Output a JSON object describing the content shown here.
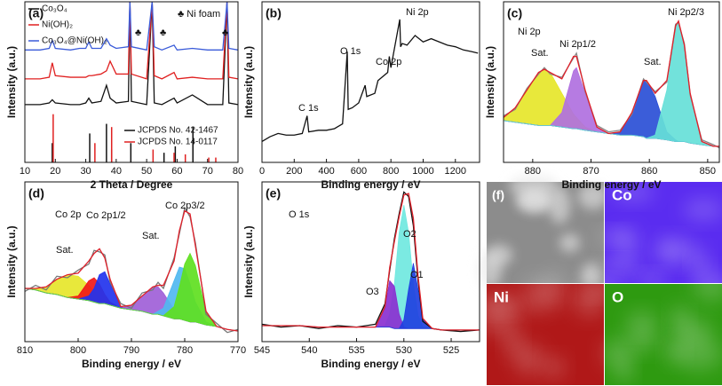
{
  "chart_data": [
    {
      "type": "line",
      "panel_label": "(a)",
      "xlabel": "2 Theta / Degree",
      "ylabel": "Intensity (a.u.)",
      "legend": "upper left",
      "xlim": [
        10,
        80
      ],
      "xticks": [
        10,
        20,
        30,
        40,
        50,
        60,
        70,
        80
      ],
      "ylim": [
        0,
        10
      ],
      "annotations": [
        "♣",
        "♣",
        "♣",
        "♣ Ni foam"
      ],
      "x": [
        10,
        15,
        18,
        19,
        20,
        25,
        28,
        30,
        31,
        32,
        35,
        36.8,
        38,
        40,
        44,
        44.5,
        45,
        50,
        51.8,
        52.5,
        55,
        59,
        60,
        65,
        70,
        75,
        76.4,
        77,
        80
      ],
      "series": [
        {
          "name": "Co₃O₄",
          "color": "#111111",
          "style": "line",
          "values": [
            3.6,
            3.6,
            3.7,
            3.9,
            3.7,
            3.6,
            3.6,
            3.7,
            4.0,
            3.7,
            3.8,
            4.8,
            4.0,
            3.7,
            3.8,
            10,
            3.8,
            3.6,
            10,
            3.7,
            3.6,
            4.0,
            3.7,
            4.2,
            3.6,
            3.6,
            10,
            3.7,
            3.6
          ]
        },
        {
          "name": "Ni(OH)₂",
          "color": "#e02020",
          "style": "line",
          "values": [
            5.2,
            5.2,
            5.3,
            6.2,
            5.4,
            5.3,
            5.3,
            5.3,
            5.4,
            5.4,
            5.5,
            5.7,
            6.3,
            5.5,
            5.5,
            10,
            5.5,
            5.2,
            10,
            5.4,
            5.2,
            5.6,
            5.2,
            5.3,
            5.2,
            5.2,
            10,
            5.3,
            5.2
          ]
        },
        {
          "name": "Co₃O₄@Ni(OH)₂",
          "color": "#3a5bd9",
          "style": "line",
          "values": [
            7.0,
            7.0,
            7.1,
            7.6,
            7.1,
            7.0,
            7.1,
            7.1,
            7.5,
            7.1,
            7.1,
            7.7,
            7.3,
            7.1,
            7.2,
            10,
            7.2,
            7.0,
            10,
            7.2,
            7.0,
            7.3,
            7.0,
            7.1,
            7.0,
            7.0,
            10,
            7.1,
            7.0
          ]
        },
        {
          "name": "JCPDS No. 42-1467",
          "color": "#111111",
          "style": "sticks",
          "x": [
            19,
            31.3,
            36.8,
            38.5,
            44.8,
            55.7,
            59.4,
            65.2
          ],
          "values": [
            1.2,
            1.8,
            2.4,
            0.8,
            1.2,
            0.6,
            1.0,
            2.2
          ]
        },
        {
          "name": "JCPDS No. 14-0117",
          "color": "#e02020",
          "style": "sticks",
          "x": [
            19.3,
            33,
            38.5,
            52.1,
            59,
            62.7,
            70.4,
            72.7
          ],
          "values": [
            3.0,
            1.2,
            2.2,
            0.8,
            0.6,
            0.5,
            0.3,
            0.3
          ]
        }
      ]
    },
    {
      "type": "line",
      "panel_label": "(b)",
      "xlabel": "Binding energy / eV",
      "ylabel": "Intensity (a.u.)",
      "xlim": [
        0,
        1350
      ],
      "xticks": [
        0,
        200,
        400,
        600,
        800,
        1000,
        1200
      ],
      "ylim": [
        0,
        10
      ],
      "annotations": [
        "Ni 2p",
        "O 1s",
        "Co 2p",
        "C 1s"
      ],
      "x": [
        0,
        50,
        100,
        150,
        200,
        250,
        280,
        290,
        350,
        400,
        450,
        500,
        529,
        535,
        560,
        600,
        640,
        650,
        700,
        720,
        780,
        790,
        800,
        855,
        860,
        870,
        900,
        950,
        1000,
        1050,
        1100,
        1150,
        1200,
        1250,
        1300,
        1340
      ],
      "series": [
        {
          "color": "#111111",
          "style": "line",
          "values": [
            1.3,
            1.6,
            1.8,
            1.7,
            1.7,
            1.8,
            2.9,
            1.9,
            2.0,
            2.0,
            2.1,
            2.4,
            6.9,
            3.3,
            3.4,
            3.7,
            4.8,
            4.1,
            4.3,
            5.1,
            5.6,
            6.6,
            5.9,
            8.9,
            7.2,
            7.4,
            7.3,
            7.9,
            7.5,
            7.7,
            7.5,
            7.3,
            7.2,
            7.0,
            6.9,
            6.8
          ]
        }
      ]
    },
    {
      "type": "line",
      "panel_label": "(c)",
      "xlabel": "Binding energy / eV",
      "ylabel": "Intensity (a.u.)",
      "xlim": [
        885,
        848
      ],
      "xticks": [
        880,
        870,
        860,
        850
      ],
      "ylim": [
        0,
        10
      ],
      "annotations": [
        "Ni 2p",
        "Sat.",
        "Ni 2p1/2",
        "Sat.",
        "Ni 2p2/3"
      ],
      "x": [
        885,
        883,
        881,
        879,
        878,
        877,
        875,
        873,
        872.5,
        871,
        869,
        867,
        865,
        863,
        861,
        860.5,
        859,
        857,
        855.5,
        855,
        854,
        853,
        851,
        849,
        848
      ],
      "series": [
        {
          "color": "#8aa0c0",
          "style": "baseline",
          "values": [
            2.6,
            2.5,
            2.4,
            2.3,
            2.3,
            2.3,
            2.2,
            2.1,
            2.1,
            2.0,
            1.9,
            1.8,
            1.7,
            1.7,
            1.6,
            1.5,
            1.5,
            1.4,
            1.3,
            1.3,
            1.3,
            1.2,
            1.1,
            1.0,
            1.0
          ]
        },
        {
          "color": "#e6e62a",
          "style": "area",
          "values": [
            2.8,
            3.4,
            4.5,
            5.6,
            5.8,
            5.6,
            4.3,
            3.0,
            2.8,
            2.2,
            1.9,
            1.8,
            1.7,
            1.7,
            1.6,
            1.5,
            1.5,
            1.4,
            1.3,
            1.3,
            1.3,
            1.2,
            1.1,
            1.0,
            1.0
          ]
        },
        {
          "color": "#b070e0",
          "style": "area",
          "values": [
            2.6,
            2.5,
            2.4,
            2.3,
            2.3,
            2.3,
            3.1,
            5.7,
            5.9,
            4.3,
            2.2,
            1.8,
            1.7,
            1.7,
            1.6,
            1.5,
            1.5,
            1.4,
            1.3,
            1.3,
            1.3,
            1.2,
            1.1,
            1.0,
            1.0
          ]
        },
        {
          "color": "#2a4fd6",
          "style": "area",
          "values": [
            2.6,
            2.5,
            2.4,
            2.3,
            2.3,
            2.3,
            2.2,
            2.1,
            2.1,
            2.0,
            1.9,
            1.8,
            1.9,
            3.1,
            5.1,
            5.1,
            4.1,
            1.9,
            1.4,
            1.3,
            1.3,
            1.2,
            1.1,
            1.0,
            1.0
          ]
        },
        {
          "color": "#66e0d8",
          "style": "area",
          "values": [
            2.6,
            2.5,
            2.4,
            2.3,
            2.3,
            2.3,
            2.2,
            2.1,
            2.1,
            2.0,
            1.9,
            1.8,
            1.7,
            1.7,
            1.6,
            1.5,
            1.7,
            4.5,
            8.4,
            8.8,
            7.3,
            4.3,
            1.3,
            1.0,
            1.0
          ]
        },
        {
          "color": "#888888",
          "style": "line",
          "values": [
            2.9,
            3.3,
            4.6,
            5.5,
            5.9,
            5.5,
            5.3,
            6.5,
            6.8,
            4.4,
            2.3,
            1.9,
            2.0,
            3.0,
            5.2,
            5.0,
            4.4,
            5.0,
            8.6,
            8.7,
            7.4,
            4.2,
            1.4,
            1.1,
            0.9
          ]
        },
        {
          "color": "#e0202a",
          "style": "line",
          "values": [
            2.8,
            3.4,
            4.5,
            5.6,
            5.8,
            5.6,
            5.2,
            6.6,
            6.6,
            4.5,
            2.2,
            1.8,
            1.9,
            3.1,
            5.1,
            5.1,
            4.3,
            5.1,
            8.5,
            8.8,
            7.3,
            4.3,
            1.3,
            1.0,
            1.0
          ]
        }
      ]
    },
    {
      "type": "line",
      "panel_label": "(d)",
      "xlabel": "Binding energy / eV",
      "ylabel": "Intensity (a.u.)",
      "xlim": [
        810,
        770
      ],
      "xticks": [
        810,
        800,
        790,
        780,
        770
      ],
      "ylim": [
        0,
        10.5
      ],
      "annotations": [
        "Co 2p",
        "Sat.",
        "Co 2p1/2",
        "Sat.",
        "Co 2p3/2"
      ],
      "x": [
        810,
        808,
        806,
        804,
        802,
        800,
        798,
        797,
        796,
        795,
        794,
        792,
        790,
        788,
        786,
        785,
        784,
        782,
        781,
        780,
        779,
        778,
        776,
        774,
        772,
        770
      ],
      "series": [
        {
          "color": "#8aa0c0",
          "style": "baseline",
          "values": [
            3.5,
            3.4,
            3.2,
            3.1,
            2.9,
            2.8,
            2.7,
            2.6,
            2.5,
            2.5,
            2.4,
            2.2,
            2.1,
            2.0,
            1.8,
            1.8,
            1.7,
            1.5,
            1.5,
            1.4,
            1.3,
            1.3,
            1.1,
            1.0,
            0.8,
            0.7
          ]
        },
        {
          "color": "#e6e62a",
          "style": "area",
          "values": [
            3.5,
            3.5,
            3.6,
            4.1,
            4.4,
            4.3,
            3.7,
            3.3,
            2.9,
            2.7,
            2.5,
            2.2,
            2.1,
            2.0,
            1.8,
            1.8,
            1.7,
            1.5,
            1.5,
            1.4,
            1.3,
            1.3,
            1.1,
            1.0,
            0.8,
            0.7
          ]
        },
        {
          "color": "#f01818",
          "style": "area",
          "values": [
            3.5,
            3.4,
            3.2,
            3.1,
            2.9,
            3.0,
            4.0,
            4.2,
            3.8,
            3.1,
            2.6,
            2.2,
            2.1,
            2.0,
            1.8,
            1.8,
            1.7,
            1.5,
            1.5,
            1.4,
            1.3,
            1.3,
            1.1,
            1.0,
            0.8,
            0.7
          ]
        },
        {
          "color": "#2233ee",
          "style": "area",
          "values": [
            3.5,
            3.4,
            3.2,
            3.1,
            2.9,
            2.8,
            3.0,
            3.5,
            4.4,
            4.6,
            3.8,
            2.3,
            2.1,
            2.0,
            1.8,
            1.8,
            1.7,
            1.5,
            1.5,
            1.4,
            1.3,
            1.3,
            1.1,
            1.0,
            0.8,
            0.7
          ]
        },
        {
          "color": "#a060d8",
          "style": "area",
          "values": [
            3.5,
            3.4,
            3.2,
            3.1,
            2.9,
            2.8,
            2.7,
            2.6,
            2.5,
            2.5,
            2.4,
            2.2,
            2.4,
            3.0,
            3.6,
            3.6,
            3.2,
            2.1,
            1.8,
            1.5,
            1.3,
            1.3,
            1.1,
            1.0,
            0.8,
            0.7
          ]
        },
        {
          "color": "#50b8f0",
          "style": "area",
          "values": [
            3.5,
            3.4,
            3.2,
            3.1,
            2.9,
            2.8,
            2.7,
            2.6,
            2.5,
            2.5,
            2.4,
            2.2,
            2.1,
            2.0,
            1.8,
            2.0,
            2.2,
            4.0,
            4.9,
            4.8,
            3.8,
            2.6,
            1.3,
            1.0,
            0.8,
            0.7
          ]
        },
        {
          "color": "#60e020",
          "style": "area",
          "values": [
            3.5,
            3.4,
            3.2,
            3.1,
            2.9,
            2.8,
            2.7,
            2.6,
            2.5,
            2.5,
            2.4,
            2.2,
            2.1,
            2.0,
            1.8,
            1.8,
            1.7,
            2.3,
            3.6,
            5.1,
            5.8,
            5.0,
            1.9,
            1.0,
            0.8,
            0.7
          ]
        },
        {
          "color": "#777777",
          "style": "line",
          "values": [
            3.3,
            3.7,
            3.4,
            4.3,
            4.2,
            4.7,
            5.1,
            6.0,
            5.9,
            5.7,
            3.9,
            2.5,
            2.2,
            3.2,
            3.4,
            3.9,
            3.5,
            5.5,
            7.1,
            8.8,
            8.2,
            6.5,
            1.8,
            1.2,
            0.6,
            0.8
          ]
        },
        {
          "color": "#e0202a",
          "style": "line",
          "values": [
            3.5,
            3.5,
            3.6,
            4.1,
            4.4,
            4.5,
            5.3,
            5.8,
            6.1,
            5.5,
            4.1,
            2.3,
            2.4,
            3.0,
            3.6,
            3.7,
            3.7,
            5.3,
            7.3,
            8.6,
            8.4,
            6.3,
            2.0,
            1.0,
            0.8,
            0.7
          ]
        }
      ]
    },
    {
      "type": "line",
      "panel_label": "(e)",
      "xlabel": "Binding energy / eV",
      "ylabel": "Intensity (a.u.)",
      "xlim": [
        545,
        522
      ],
      "xticks": [
        545,
        540,
        535,
        530,
        525
      ],
      "ylim": [
        0,
        11
      ],
      "annotations": [
        "O 1s",
        "O2",
        "O1",
        "O3"
      ],
      "x": [
        545,
        543,
        541,
        539,
        537,
        535,
        534,
        533,
        532,
        531.5,
        531,
        530.5,
        530,
        529.5,
        529,
        528.5,
        528,
        527,
        526,
        524,
        522
      ],
      "series": [
        {
          "color": "#8aa0c0",
          "style": "baseline",
          "values": [
            1.1,
            1.1,
            1.1,
            1.0,
            1.0,
            1.0,
            1.0,
            1.0,
            1.0,
            1.0,
            0.9,
            0.9,
            0.9,
            0.9,
            0.9,
            0.9,
            0.9,
            0.9,
            0.8,
            0.8,
            0.8
          ]
        },
        {
          "color": "#70e8e0",
          "style": "area",
          "values": [
            1.1,
            1.1,
            1.1,
            1.0,
            1.0,
            1.0,
            1.0,
            1.0,
            1.1,
            1.9,
            4.0,
            7.5,
            9.4,
            7.5,
            4.0,
            1.8,
            1.0,
            0.9,
            0.8,
            0.8,
            0.8
          ]
        },
        {
          "color": "#8a30d0",
          "style": "area",
          "values": [
            1.1,
            1.1,
            1.1,
            1.0,
            1.0,
            1.0,
            1.0,
            1.0,
            2.3,
            4.2,
            3.8,
            1.9,
            1.0,
            0.9,
            0.9,
            0.9,
            0.9,
            0.9,
            0.8,
            0.8,
            0.8
          ]
        },
        {
          "color": "#2040e0",
          "style": "area",
          "values": [
            1.1,
            1.1,
            1.1,
            1.0,
            1.0,
            1.0,
            1.0,
            1.0,
            1.0,
            1.0,
            0.9,
            0.9,
            1.5,
            3.6,
            5.4,
            3.6,
            1.5,
            0.9,
            0.8,
            0.8,
            0.8
          ]
        },
        {
          "color": "#111111",
          "style": "line",
          "values": [
            1.2,
            1.0,
            1.1,
            0.9,
            1.1,
            1.0,
            1.1,
            1.2,
            2.6,
            4.9,
            7.1,
            8.8,
            10.3,
            10.0,
            8.0,
            4.2,
            1.4,
            0.9,
            0.8,
            0.7,
            0.8
          ]
        },
        {
          "color": "#e0202a",
          "style": "line",
          "values": [
            1.1,
            1.1,
            1.1,
            1.0,
            1.0,
            1.0,
            1.0,
            1.0,
            2.4,
            5.1,
            6.9,
            8.6,
            10.1,
            10.2,
            8.5,
            4.5,
            1.6,
            0.9,
            0.8,
            0.8,
            0.8
          ]
        }
      ]
    }
  ],
  "image_panel": {
    "panel_label": "(f)",
    "tiles": [
      {
        "color": "#8c8c8c"
      },
      {
        "label": "Co",
        "color": "#5a2cf0"
      },
      {
        "label": "Ni",
        "color": "#b01818"
      },
      {
        "label": "O",
        "color": "#2e9a10"
      }
    ]
  }
}
